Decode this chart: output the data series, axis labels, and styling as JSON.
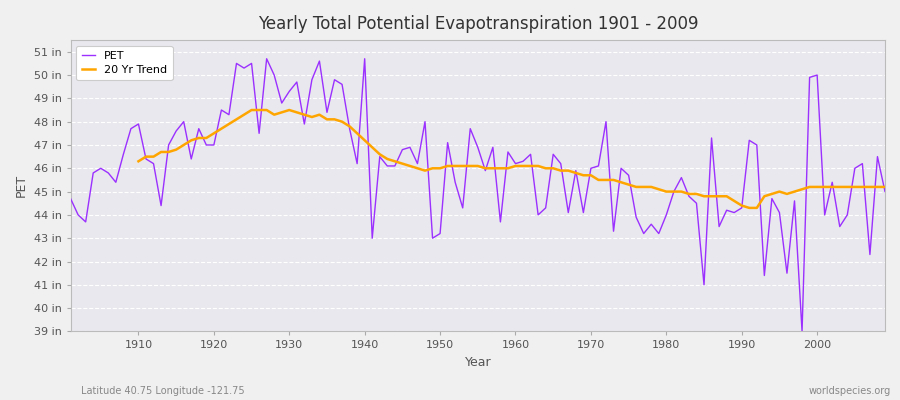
{
  "title": "Yearly Total Potential Evapotranspiration 1901 - 2009",
  "xlabel": "Year",
  "ylabel": "PET",
  "footnote_left": "Latitude 40.75 Longitude -121.75",
  "footnote_right": "worldspecies.org",
  "pet_color": "#9B30FF",
  "trend_color": "#FFA500",
  "background_color": "#F0F0F0",
  "plot_bg_color": "#E8E8EE",
  "grid_color": "#FFFFFF",
  "ylim": [
    39,
    51.5
  ],
  "xlim": [
    1901,
    2009
  ],
  "ytick_labels": [
    "39 in",
    "40 in",
    "41 in",
    "42 in",
    "43 in",
    "44 in",
    "45 in",
    "46 in",
    "47 in",
    "48 in",
    "49 in",
    "50 in",
    "51 in"
  ],
  "ytick_values": [
    39,
    40,
    41,
    42,
    43,
    44,
    45,
    46,
    47,
    48,
    49,
    50,
    51
  ],
  "years": [
    1901,
    1902,
    1903,
    1904,
    1905,
    1906,
    1907,
    1908,
    1909,
    1910,
    1911,
    1912,
    1913,
    1914,
    1915,
    1916,
    1917,
    1918,
    1919,
    1920,
    1921,
    1922,
    1923,
    1924,
    1925,
    1926,
    1927,
    1928,
    1929,
    1930,
    1931,
    1932,
    1933,
    1934,
    1935,
    1936,
    1937,
    1938,
    1939,
    1940,
    1941,
    1942,
    1943,
    1944,
    1945,
    1946,
    1947,
    1948,
    1949,
    1950,
    1951,
    1952,
    1953,
    1954,
    1955,
    1956,
    1957,
    1958,
    1959,
    1960,
    1961,
    1962,
    1963,
    1964,
    1965,
    1966,
    1967,
    1968,
    1969,
    1970,
    1971,
    1972,
    1973,
    1974,
    1975,
    1976,
    1977,
    1978,
    1979,
    1980,
    1981,
    1982,
    1983,
    1984,
    1985,
    1986,
    1987,
    1988,
    1989,
    1990,
    1991,
    1992,
    1993,
    1994,
    1995,
    1996,
    1997,
    1998,
    1999,
    2000,
    2001,
    2002,
    2003,
    2004,
    2005,
    2006,
    2007,
    2008,
    2009
  ],
  "pet_values": [
    44.7,
    44.0,
    43.7,
    45.8,
    46.0,
    45.8,
    45.4,
    46.6,
    47.7,
    47.9,
    46.4,
    46.2,
    44.4,
    47.0,
    47.6,
    48.0,
    46.4,
    47.7,
    47.0,
    47.0,
    48.5,
    48.3,
    50.5,
    50.3,
    50.5,
    47.5,
    50.7,
    50.0,
    48.8,
    49.3,
    49.7,
    47.9,
    49.8,
    50.6,
    48.4,
    49.8,
    49.6,
    47.7,
    46.2,
    50.7,
    43.0,
    46.5,
    46.1,
    46.1,
    46.8,
    46.9,
    46.2,
    48.0,
    43.0,
    43.2,
    47.1,
    45.4,
    44.3,
    47.7,
    46.9,
    45.9,
    46.9,
    43.7,
    46.7,
    46.2,
    46.3,
    46.6,
    44.0,
    44.3,
    46.6,
    46.2,
    44.1,
    45.9,
    44.1,
    46.0,
    46.1,
    48.0,
    43.3,
    46.0,
    45.7,
    43.9,
    43.2,
    43.6,
    43.2,
    44.0,
    45.0,
    45.6,
    44.8,
    44.5,
    41.0,
    47.3,
    43.5,
    44.2,
    44.1,
    44.3,
    47.2,
    47.0,
    41.4,
    44.7,
    44.1,
    41.5,
    44.6,
    39.0,
    49.9,
    50.0,
    44.0,
    45.4,
    43.5,
    44.0,
    46.0,
    46.2,
    42.3,
    46.5,
    45.0
  ],
  "trend_years": [
    1910,
    1911,
    1912,
    1913,
    1914,
    1915,
    1916,
    1917,
    1918,
    1919,
    1920,
    1921,
    1922,
    1923,
    1924,
    1925,
    1926,
    1927,
    1928,
    1929,
    1930,
    1931,
    1932,
    1933,
    1934,
    1935,
    1936,
    1937,
    1938,
    1939,
    1940,
    1941,
    1942,
    1943,
    1944,
    1945,
    1946,
    1947,
    1948,
    1949,
    1950,
    1951,
    1952,
    1953,
    1954,
    1955,
    1956,
    1957,
    1958,
    1959,
    1960,
    1961,
    1962,
    1963,
    1964,
    1965,
    1966,
    1967,
    1968,
    1969,
    1970,
    1971,
    1972,
    1973,
    1974,
    1975,
    1976,
    1977,
    1978,
    1979,
    1980,
    1981,
    1982,
    1983,
    1984,
    1985,
    1986,
    1987,
    1988,
    1989,
    1990,
    1991,
    1992,
    1993,
    1994,
    1995,
    1996,
    1997,
    1998,
    1999,
    2000,
    2001,
    2002,
    2003,
    2004,
    2005,
    2006,
    2007,
    2008,
    2009
  ],
  "trend_values": [
    46.3,
    46.5,
    46.5,
    46.7,
    46.7,
    46.8,
    47.0,
    47.2,
    47.3,
    47.3,
    47.5,
    47.7,
    47.9,
    48.1,
    48.3,
    48.5,
    48.5,
    48.5,
    48.3,
    48.4,
    48.5,
    48.4,
    48.3,
    48.2,
    48.3,
    48.1,
    48.1,
    48.0,
    47.8,
    47.5,
    47.2,
    46.9,
    46.6,
    46.4,
    46.3,
    46.2,
    46.1,
    46.0,
    45.9,
    46.0,
    46.0,
    46.1,
    46.1,
    46.1,
    46.1,
    46.1,
    46.0,
    46.0,
    46.0,
    46.0,
    46.1,
    46.1,
    46.1,
    46.1,
    46.0,
    46.0,
    45.9,
    45.9,
    45.8,
    45.7,
    45.7,
    45.5,
    45.5,
    45.5,
    45.4,
    45.3,
    45.2,
    45.2,
    45.2,
    45.1,
    45.0,
    45.0,
    45.0,
    44.9,
    44.9,
    44.8,
    44.8,
    44.8,
    44.8,
    44.6,
    44.4,
    44.3,
    44.3,
    44.8,
    44.9,
    45.0,
    44.9,
    45.0,
    45.1,
    45.2,
    45.2,
    45.2,
    45.2,
    45.2,
    45.2,
    45.2,
    45.2,
    45.2,
    45.2,
    45.2
  ]
}
